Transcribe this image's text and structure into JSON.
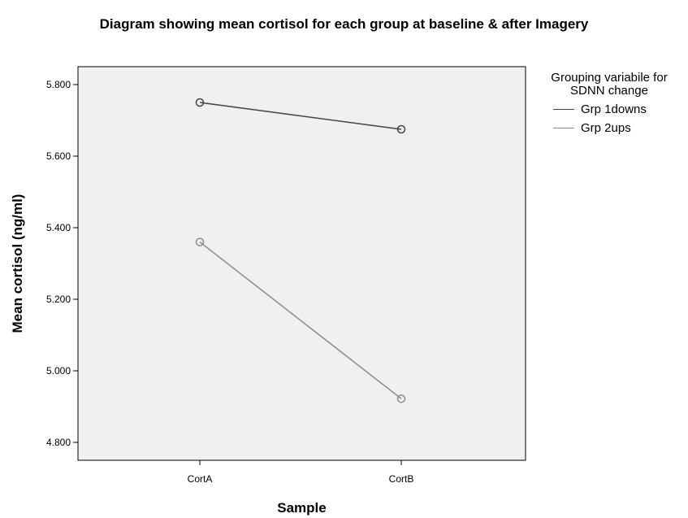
{
  "chart_data": {
    "type": "line",
    "title": "Diagram showing mean cortisol for each group at baseline & after Imagery",
    "xlabel": "Sample",
    "ylabel": "Mean cortisol (ng/ml)",
    "categories": [
      "CortA",
      "CortB"
    ],
    "ylim": [
      4.75,
      5.85
    ],
    "yticks": [
      4.8,
      5.0,
      5.2,
      5.4,
      5.6,
      5.8
    ],
    "ytick_labels": [
      "4.800",
      "5.000",
      "5.200",
      "5.400",
      "5.600",
      "5.800"
    ],
    "grid": false,
    "legend": {
      "title": "Grouping variabile for SDNN change",
      "placement": "right"
    },
    "series": [
      {
        "name": "Grp 1downs",
        "values": [
          5.75,
          5.675
        ],
        "color": "#444444"
      },
      {
        "name": "Grp 2ups",
        "values": [
          5.36,
          4.922
        ],
        "color": "#8a8a8a"
      }
    ],
    "plot_background": "#f0f0f0"
  }
}
